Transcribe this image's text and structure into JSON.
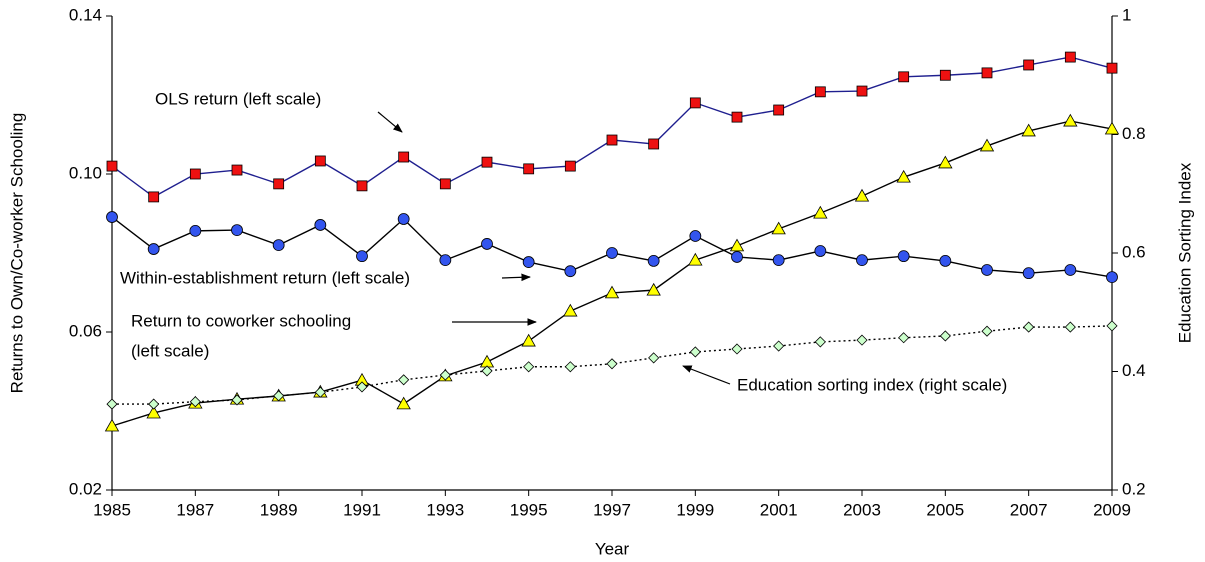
{
  "chart_data": {
    "type": "line",
    "x_label": "Year",
    "y_label": "Returns to Own/Co-worker Schooling",
    "y2_label": "Education Sorting Index",
    "x": [
      1985,
      1986,
      1987,
      1988,
      1989,
      1990,
      1991,
      1992,
      1993,
      1994,
      1995,
      1996,
      1997,
      1998,
      1999,
      2000,
      2001,
      2002,
      2003,
      2004,
      2005,
      2006,
      2007,
      2008,
      2009
    ],
    "xlim": [
      1985,
      2009
    ],
    "xticks": [
      1985,
      1987,
      1989,
      1991,
      1993,
      1995,
      1997,
      1999,
      2001,
      2003,
      2005,
      2007,
      2009
    ],
    "ylim": [
      0.02,
      0.14
    ],
    "yticks": [
      0.02,
      0.06,
      {
        "value": 0.1,
        "label": "0.10"
      },
      0.14
    ],
    "y2lim": [
      0.2,
      1
    ],
    "y2ticks": [
      0.2,
      0.4,
      0.6,
      0.8,
      1
    ],
    "series": [
      {
        "name": "OLS return",
        "color": "#1f1f8f",
        "marker": "square",
        "marker_color": "#ee1111",
        "values": [
          0.102,
          0.0942,
          0.1,
          0.101,
          0.0975,
          0.1033,
          0.097,
          0.1043,
          0.0975,
          0.103,
          0.1013,
          0.102,
          0.1086,
          0.1076,
          0.118,
          0.1144,
          0.1162,
          0.1208,
          0.121,
          0.1246,
          0.125,
          0.1256,
          0.1276,
          0.1296,
          0.1268
        ]
      },
      {
        "name": "Within-establishment return",
        "color": "#000000",
        "marker": "circle",
        "marker_color": "#3355ee",
        "values": [
          0.0891,
          0.081,
          0.0856,
          0.0858,
          0.082,
          0.0871,
          0.0792,
          0.0886,
          0.0782,
          0.0823,
          0.0777,
          0.0754,
          0.08,
          0.078,
          0.0843,
          0.079,
          0.0782,
          0.0805,
          0.0782,
          0.0792,
          0.078,
          0.0757,
          0.0749,
          0.0757,
          0.0739
        ]
      },
      {
        "name": "Return to coworker schooling",
        "color": "#000000",
        "marker": "triangle",
        "marker_color": "#ffff00",
        "values": [
          0.0362,
          0.0395,
          0.042,
          0.043,
          0.0438,
          0.0448,
          0.0478,
          0.0418,
          0.0489,
          0.0524,
          0.0577,
          0.0653,
          0.0699,
          0.0706,
          0.0782,
          0.0818,
          0.0861,
          0.0901,
          0.0944,
          0.0992,
          0.1028,
          0.1071,
          0.1109,
          0.1134,
          0.1114
        ]
      },
      {
        "name": "Education sorting index",
        "color": "#000000",
        "marker": "diamond",
        "marker_color": "#ccffcc",
        "dash": "dotted",
        "axis": "y2",
        "values": [
          0.345,
          0.345,
          0.349,
          0.352,
          0.359,
          0.365,
          0.374,
          0.386,
          0.394,
          0.401,
          0.408,
          0.408,
          0.413,
          0.423,
          0.433,
          0.438,
          0.443,
          0.45,
          0.453,
          0.457,
          0.46,
          0.468,
          0.475,
          0.475,
          0.477
        ]
      }
    ],
    "annotations": [
      "OLS return (left scale)",
      "Within-establishment return (left scale)",
      "Return to coworker schooling",
      "(left scale)",
      "Education sorting index (right scale)"
    ]
  }
}
